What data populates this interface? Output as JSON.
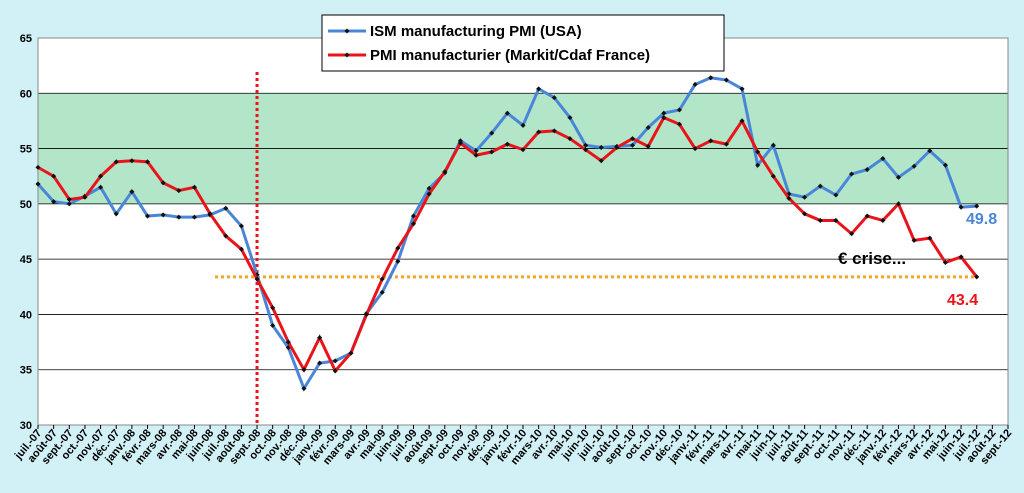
{
  "chart_data": {
    "type": "line",
    "categories": [
      "juil.-07",
      "août-07",
      "sept.-07",
      "oct.-07",
      "nov.-07",
      "déc.-07",
      "janv.-08",
      "févr.-08",
      "mars-08",
      "avr.-08",
      "mai-08",
      "juin-08",
      "juil.-08",
      "août-08",
      "sept.-08",
      "oct.-08",
      "nov.-08",
      "déc.-08",
      "janv.-09",
      "févr.-09",
      "mars-09",
      "avr.-09",
      "mai-09",
      "juin-09",
      "juil.-09",
      "août-09",
      "sept.-09",
      "oct.-09",
      "nov.-09",
      "déc.-09",
      "janv.-10",
      "févr.-10",
      "mars-10",
      "avr.-10",
      "mai-10",
      "juin-10",
      "juil.-10",
      "août-10",
      "sept.-10",
      "oct.-10",
      "nov.-10",
      "déc.-10",
      "janv.-11",
      "févr.-11",
      "mars-11",
      "avr.-11",
      "mai-11",
      "juin-11",
      "juil.-11",
      "août-11",
      "sept.-11",
      "oct.-11",
      "nov.-11",
      "déc.-11",
      "janv.-12",
      "févr.-12",
      "mars-12",
      "avr.-12",
      "mai-12",
      "juin-12",
      "juil.-12",
      "août-12",
      "sept.-12"
    ],
    "series": [
      {
        "name": "ISM manufacturing PMI (USA)",
        "color": "#4a86d8",
        "values": [
          51.8,
          50.2,
          50.0,
          50.7,
          51.5,
          49.1,
          51.1,
          48.9,
          49.0,
          48.8,
          48.8,
          49.0,
          49.6,
          48.0,
          43.6,
          39.0,
          37.0,
          33.3,
          35.6,
          35.8,
          36.5,
          40.1,
          42.0,
          44.8,
          48.9,
          51.4,
          52.8,
          55.7,
          54.8,
          56.4,
          58.2,
          57.1,
          60.4,
          59.6,
          57.8,
          55.3,
          55.1,
          55.2,
          55.3,
          56.9,
          58.2,
          58.5,
          60.8,
          61.4,
          61.2,
          60.4,
          53.5,
          55.3,
          50.9,
          50.6,
          51.6,
          50.8,
          52.7,
          53.1,
          54.1,
          52.4,
          53.4,
          54.8,
          53.5,
          49.7,
          49.8,
          null,
          null
        ]
      },
      {
        "name": "PMI manufacturier (Markit/Cdaf France)",
        "color": "#e8141a",
        "values": [
          53.3,
          52.5,
          50.4,
          50.6,
          52.5,
          53.8,
          53.9,
          53.8,
          51.9,
          51.2,
          51.5,
          49.1,
          47.1,
          45.9,
          43.2,
          40.6,
          37.5,
          35.0,
          37.9,
          34.9,
          36.5,
          40.0,
          43.2,
          46.0,
          48.2,
          50.9,
          52.9,
          55.5,
          54.4,
          54.7,
          55.4,
          54.9,
          56.5,
          56.6,
          55.9,
          54.9,
          53.9,
          55.1,
          55.9,
          55.2,
          57.8,
          57.2,
          55.0,
          55.7,
          55.4,
          57.5,
          54.7,
          52.5,
          50.5,
          49.1,
          48.5,
          48.5,
          47.3,
          48.9,
          48.5,
          50.0,
          46.7,
          46.9,
          44.7,
          45.2,
          43.4,
          null,
          null
        ]
      }
    ],
    "ylim": [
      30,
      65
    ],
    "yticks": [
      30,
      35,
      40,
      45,
      50,
      55,
      60,
      65
    ],
    "grid": true,
    "shaded_band": [
      50,
      60
    ],
    "vline": "sept.-08",
    "hline": 43.4,
    "annotation": "€ crise...",
    "legend": "top"
  }
}
